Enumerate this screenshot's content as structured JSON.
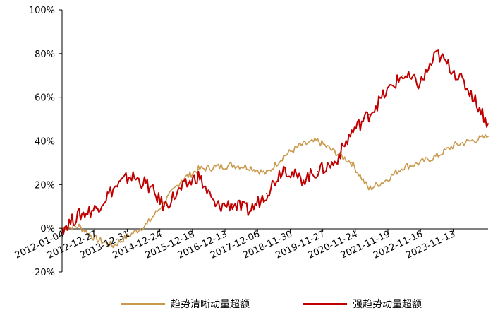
{
  "chart_data": {
    "type": "line",
    "title": "",
    "xlabel": "",
    "ylabel": "",
    "ylim": [
      -20,
      100
    ],
    "y_ticks": [
      "-20%",
      "0%",
      "20%",
      "40%",
      "60%",
      "80%",
      "100%"
    ],
    "x_ticks": [
      "2012-01-04",
      "2012-12-27",
      "2013-12-31",
      "2014-12-24",
      "2015-12-18",
      "2016-12-13",
      "2017-12-06",
      "2018-11-30",
      "2019-11-27",
      "2020-11-24",
      "2021-11-19",
      "2022-11-16",
      "2023-11-13"
    ],
    "grid": false,
    "legend_position": "bottom",
    "x": [
      "2012-01-04",
      "2012-07",
      "2012-12-27",
      "2013-07",
      "2013-12-31",
      "2014-07",
      "2014-12-24",
      "2015-06",
      "2015-12-18",
      "2016-07",
      "2016-12-13",
      "2017-07",
      "2017-12-06",
      "2018-06",
      "2018-11-30",
      "2019-06",
      "2019-11-27",
      "2020-06",
      "2020-11-24",
      "2021-06",
      "2021-11-19",
      "2022-06",
      "2022-11-16",
      "2023-06",
      "2023-11-13",
      "2024-06"
    ],
    "series": [
      {
        "name": "趋势清晰动量超额",
        "color": "#C99A4E",
        "values": [
          0,
          1,
          -5,
          -8,
          -3,
          2,
          12,
          22,
          27,
          28,
          29,
          28,
          25,
          33,
          38,
          40,
          35,
          30,
          18,
          22,
          28,
          30,
          33,
          38,
          40,
          42
        ]
      },
      {
        "name": "强趋势动量超额",
        "color": "#C00000",
        "values": [
          0,
          6,
          9,
          18,
          24,
          20,
          10,
          18,
          24,
          10,
          11,
          8,
          16,
          28,
          22,
          26,
          30,
          44,
          52,
          62,
          70,
          66,
          80,
          72,
          62,
          48
        ]
      }
    ]
  },
  "legend": {
    "items": [
      {
        "label": "趋势清晰动量超额",
        "color": "#C99A4E"
      },
      {
        "label": "强趋势动量超额",
        "color": "#C00000"
      }
    ]
  }
}
